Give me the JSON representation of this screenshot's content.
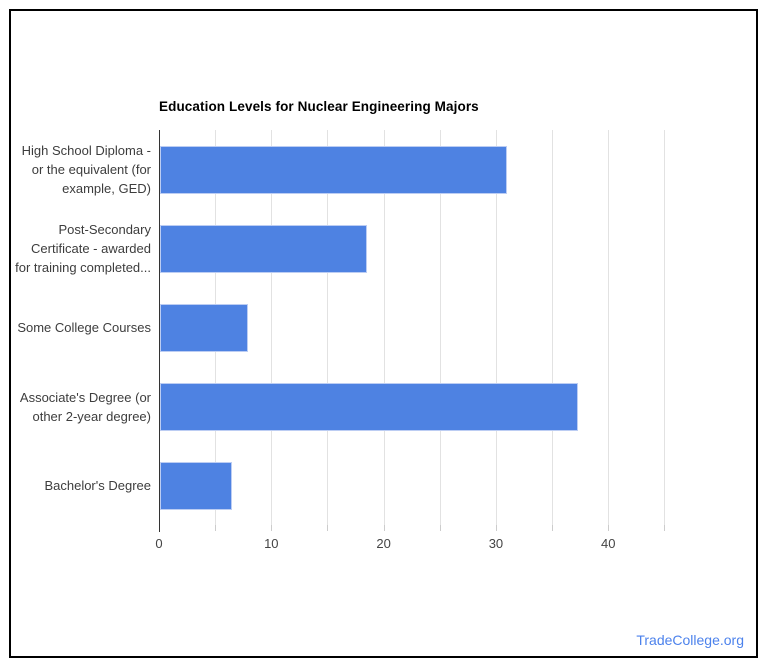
{
  "chart_data": {
    "type": "bar",
    "orientation": "horizontal",
    "title": "Education Levels for Nuclear Engineering Majors",
    "categories": [
      "High School Diploma - or the equivalent (for example, GED)",
      "Post-Secondary Certificate - awarded for training completed...",
      "Some College Courses",
      "Associate's Degree (or other 2-year degree)",
      "Bachelor's Degree"
    ],
    "category_display_lines": [
      [
        "High School Diploma -",
        "or the equivalent (for",
        "example, GED)"
      ],
      [
        "Post-Secondary",
        "Certificate - awarded",
        "for training completed..."
      ],
      [
        "Some College Courses"
      ],
      [
        "Associate's Degree (or",
        "other 2-year degree)"
      ],
      [
        "Bachelor's Degree"
      ]
    ],
    "values": [
      30.9,
      18.4,
      7.8,
      37.2,
      6.4
    ],
    "xlabel": "",
    "ylabel": "",
    "xlim": [
      0,
      46.3
    ],
    "x_major_ticks": [
      0,
      10,
      20,
      30,
      40
    ],
    "x_gridlines": [
      5,
      10,
      15,
      20,
      25,
      30,
      35,
      40,
      45
    ],
    "grid": true,
    "legend": "none",
    "bar_color": "#4e82e2",
    "bar_border_color": "#bccdf3",
    "gridline_color": "#e2e2e2",
    "axis_line_color": "#333333",
    "tick_label_color": "#444444",
    "category_label_color": "#3d3d3d",
    "title_color": "#000000",
    "frame_border_color": "#000000"
  },
  "footer": {
    "brand": "TradeCollege.org",
    "brand_color": "#4c82ec"
  }
}
